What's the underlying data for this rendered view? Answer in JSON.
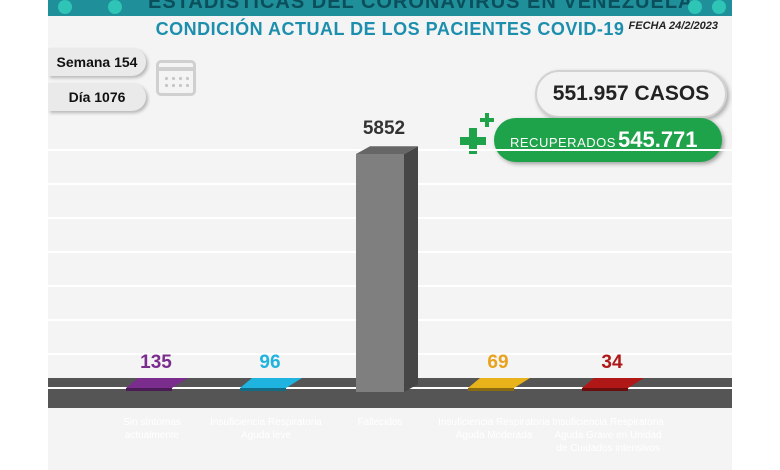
{
  "banner": {
    "text": "ESTADÍSTICAS DEL CORONAVIRUS EN VENEZUELA"
  },
  "header": {
    "title": "CONDICIÓN ACTUAL DE LOS PACIENTES COVID-19",
    "date": "FECHA 24/2/2023"
  },
  "info": {
    "week": "Semana 154",
    "day": "Día 1076"
  },
  "summary": {
    "cases": "551.957 CASOS",
    "recovered_label": "RECUPERADOS",
    "recovered_value": "545.771"
  },
  "icons": [
    "calendar-icon",
    "plus-icon",
    "virus-icon"
  ],
  "colors": {
    "title": "#1d8fae",
    "recovered": "#1ea24a",
    "floor": "#555555"
  },
  "chart_data": {
    "type": "bar",
    "title": "CONDICIÓN ACTUAL DE LOS PACIENTES COVID-19",
    "categories": [
      "Sin síntomas actualmente",
      "Insuficiencia Respiratoria Aguda leve",
      "Fallecidos",
      "Insuficiencia Respiratoria Aguda Moderada",
      "Insuficiencia Respiratoria Aguda Grave en Unidad de Cuidados intensivos"
    ],
    "values": [
      135,
      96,
      5852,
      69,
      34
    ],
    "data_labels": [
      "135",
      "96",
      "5852",
      "69",
      "34"
    ],
    "colors": [
      "#7b2d8e",
      "#1fb3e0",
      "#7f7f7f",
      "#e8b21b",
      "#b01818"
    ],
    "label_colors": [
      "#7b2d8e",
      "#1fb3e0",
      "#333333",
      "#e8a21b",
      "#b01818"
    ],
    "ylim": [
      0,
      5852
    ],
    "grid": true,
    "legend": "none"
  }
}
